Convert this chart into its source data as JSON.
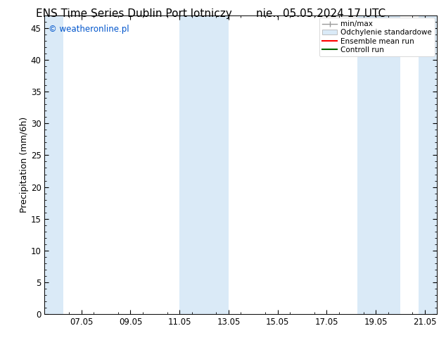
{
  "title_left": "ENS Time Series Dublin Port lotniczy",
  "title_right": "nie.. 05.05.2024 17 UTC",
  "ylabel": "Precipitation (mm/6h)",
  "watermark": "© weatheronline.pl",
  "watermark_color": "#0055cc",
  "background_color": "#ffffff",
  "plot_bg_color": "#ffffff",
  "shaded_band_color": "#daeaf7",
  "shaded_bands": [
    [
      5.5,
      6.25
    ],
    [
      11.0,
      12.0
    ],
    [
      12.0,
      13.0
    ],
    [
      18.25,
      19.0
    ],
    [
      19.0,
      20.0
    ],
    [
      20.75,
      21.5
    ]
  ],
  "xlim_min": 5.5,
  "xlim_max": 21.5,
  "ylim_min": 0,
  "ylim_max": 47,
  "xtick_positions": [
    7.0,
    9.0,
    11.0,
    13.0,
    15.0,
    17.0,
    19.0,
    21.0
  ],
  "xtick_labels": [
    "07.05",
    "09.05",
    "11.05",
    "13.05",
    "15.05",
    "17.05",
    "19.05",
    "21.05"
  ],
  "ytick_positions": [
    0,
    5,
    10,
    15,
    20,
    25,
    30,
    35,
    40,
    45
  ],
  "legend_entries": [
    {
      "label": "min/max",
      "color": "#aaaaaa",
      "style": "line_with_caps"
    },
    {
      "label": "Odchylenie standardowe",
      "color": "#ccddee",
      "style": "filled_rect"
    },
    {
      "label": "Ensemble mean run",
      "color": "#ff0000",
      "style": "line"
    },
    {
      "label": "Controll run",
      "color": "#008000",
      "style": "line"
    }
  ],
  "tick_fontsize": 8.5,
  "label_fontsize": 9,
  "title_fontsize": 11,
  "watermark_fontsize": 8.5,
  "axis_color": "#000000",
  "minor_tick_color": "#888888"
}
